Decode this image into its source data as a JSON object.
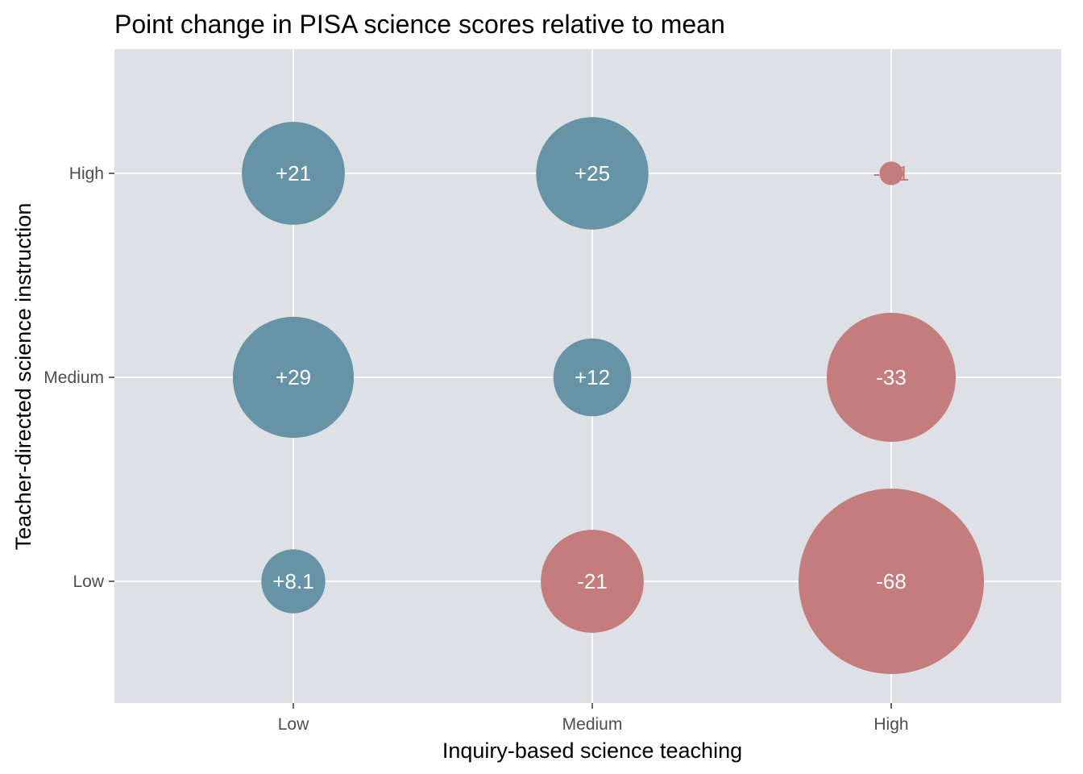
{
  "chart_data": {
    "type": "scatter",
    "subtype": "bubble",
    "title": "Point change in PISA science scores relative to mean",
    "xlabel": "Inquiry-based science teaching",
    "ylabel": "Teacher-directed science instruction",
    "x_categories": [
      "Low",
      "Medium",
      "High"
    ],
    "y_categories": [
      "Low",
      "Medium",
      "High"
    ],
    "grid": true,
    "legend": "none",
    "colors": {
      "positive": "#6693a6",
      "negative": "#c47c7c",
      "panel_background": "#dde1e5",
      "grid": "#ffffff",
      "label_on_bubble": "#ffffff"
    },
    "points": [
      {
        "x": "Low",
        "y": "High",
        "value": 21,
        "label": "+21"
      },
      {
        "x": "Medium",
        "y": "High",
        "value": 25,
        "label": "+25"
      },
      {
        "x": "High",
        "y": "High",
        "value": -1.1,
        "label": "-1.1"
      },
      {
        "x": "Low",
        "y": "Medium",
        "value": 29,
        "label": "+29"
      },
      {
        "x": "Medium",
        "y": "Medium",
        "value": 12,
        "label": "+12"
      },
      {
        "x": "High",
        "y": "Medium",
        "value": -33,
        "label": "-33"
      },
      {
        "x": "Low",
        "y": "Low",
        "value": 8.1,
        "label": "+8.1"
      },
      {
        "x": "Medium",
        "y": "Low",
        "value": -21,
        "label": "-21"
      },
      {
        "x": "High",
        "y": "Low",
        "value": -68,
        "label": "-68"
      }
    ]
  }
}
